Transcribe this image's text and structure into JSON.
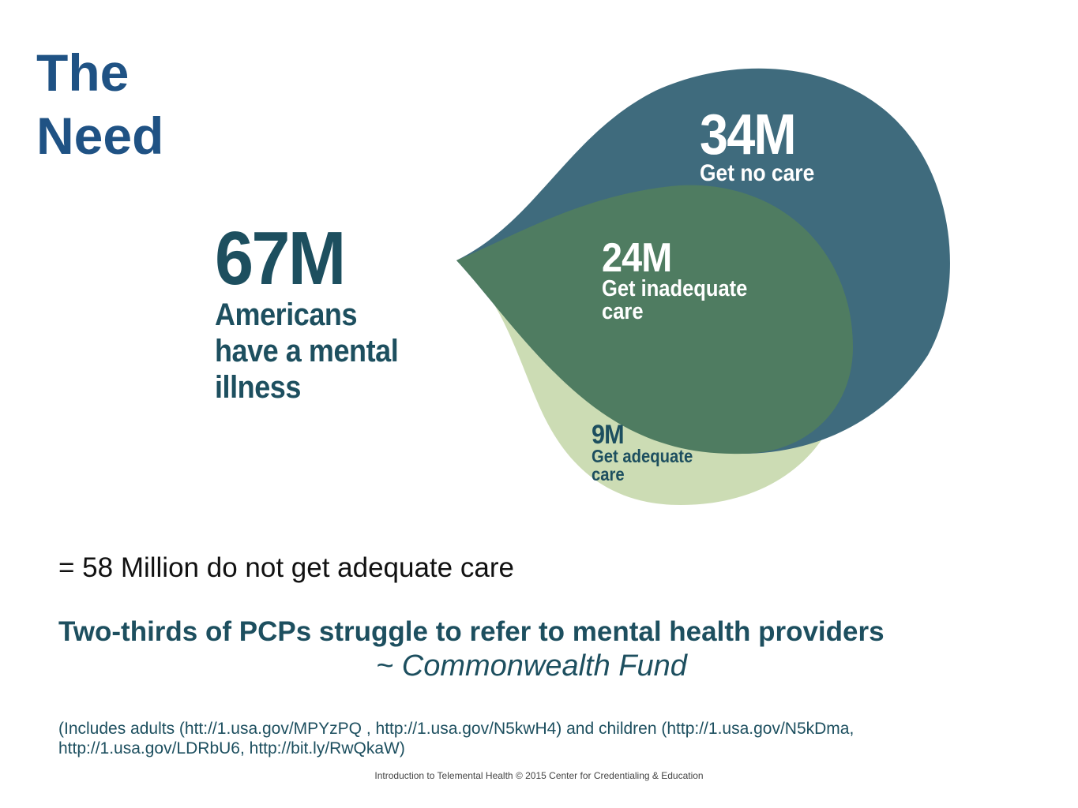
{
  "title": {
    "line1": "The",
    "line2": "Need"
  },
  "total": {
    "value": "67M",
    "label_lines": [
      "Americans",
      "have a mental",
      "illness"
    ]
  },
  "segments": {
    "no_care": {
      "value": "34M",
      "label": "Get no care",
      "color": "#3f6b7d"
    },
    "inadequate_care": {
      "value": "24M",
      "label_lines": [
        "Get inadequate",
        "care"
      ],
      "color": "#4f7c61"
    },
    "adequate_care": {
      "value": "9M",
      "label_lines": [
        "Get adequate",
        "care"
      ],
      "color": "#ccdcb4"
    }
  },
  "summary": "= 58 Million do not get adequate care",
  "quote": "Two-thirds of PCPs struggle to refer to mental health providers",
  "attribution": "~ Commonwealth Fund",
  "sources": "(Includes adults (htt://1.usa.gov/MPYzPQ , http://1.usa.gov/N5kwH4) and children (http://1.usa.gov/N5kDma, http://1.usa.gov/LDRbU6, http://bit.ly/RwQkaW)",
  "footer": "Introduction to Telemental Health © 2015 Center for Credentialing & Education",
  "colors": {
    "title": "#1f5284",
    "dark_teal_text": "#1d4f5f"
  }
}
